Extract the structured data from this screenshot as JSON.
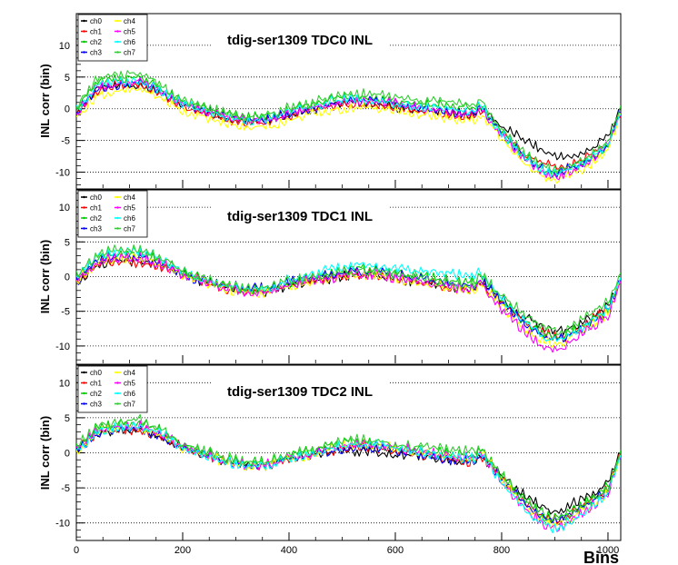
{
  "figure": {
    "x_axis_label": "Bins",
    "y_axis_label": "INL corr (bin)",
    "x_ticks": [
      "0",
      "200",
      "400",
      "600",
      "800",
      "1000"
    ],
    "y_ticks": [
      "10",
      "5",
      "0",
      "-5",
      "-10"
    ]
  },
  "legend": {
    "entries": [
      {
        "label": "ch0",
        "color": "#000000"
      },
      {
        "label": "ch1",
        "color": "#ff0000"
      },
      {
        "label": "ch2",
        "color": "#00cc00"
      },
      {
        "label": "ch3",
        "color": "#0000ff"
      },
      {
        "label": "ch4",
        "color": "#ffff00"
      },
      {
        "label": "ch5",
        "color": "#ff00ff"
      },
      {
        "label": "ch6",
        "color": "#00ffff"
      },
      {
        "label": "ch7",
        "color": "#33cc33"
      }
    ]
  },
  "chart_data": [
    {
      "type": "line",
      "title": "tdig-ser1309 TDC0 INL",
      "xlabel": "Bins",
      "ylabel": "INL corr (bin)",
      "xlim": [
        0,
        1024
      ],
      "ylim": [
        -12.5,
        15
      ],
      "grid": "horizontal-dotted",
      "legend_placement": "top-left",
      "x": [
        0,
        40,
        80,
        120,
        160,
        200,
        240,
        280,
        320,
        360,
        400,
        440,
        480,
        520,
        560,
        600,
        640,
        680,
        720,
        750,
        760,
        800,
        840,
        880,
        900,
        920,
        960,
        1000,
        1024
      ],
      "series": [
        {
          "name": "ch0",
          "values": [
            -1,
            3,
            3.5,
            3.5,
            2,
            0.5,
            -0.5,
            -1.5,
            -2,
            -2,
            -1,
            -0.5,
            0.5,
            1,
            0.5,
            0,
            -0.5,
            -0.5,
            -1,
            -1,
            0,
            -3,
            -5,
            -7,
            -7.5,
            -8,
            -7,
            -4.5,
            -0.5
          ]
        },
        {
          "name": "ch1",
          "values": [
            -1,
            2.5,
            3.5,
            3.5,
            2,
            0,
            -1,
            -2,
            -2.5,
            -2.5,
            -1.5,
            -0.5,
            0,
            0.5,
            0.5,
            0,
            -0.5,
            -1,
            -1.5,
            -1.5,
            -0.5,
            -4,
            -7,
            -9,
            -9.5,
            -9.5,
            -8,
            -5.5,
            -1
          ]
        },
        {
          "name": "ch2",
          "values": [
            0,
            4,
            4.5,
            5,
            3,
            1,
            0,
            -1,
            -1.5,
            -1.5,
            -0.5,
            0.5,
            1.5,
            2,
            1.5,
            1,
            0.5,
            0.5,
            0,
            0,
            0.5,
            -4,
            -7.5,
            -10,
            -10.5,
            -10,
            -8.5,
            -6,
            -0.5
          ]
        },
        {
          "name": "ch3",
          "values": [
            -1,
            3,
            3.5,
            4,
            2.5,
            0.5,
            -0.5,
            -1.5,
            -2,
            -2,
            -1,
            -0.5,
            0.5,
            1,
            1,
            0.5,
            0,
            -0.5,
            -1,
            -1,
            0,
            -4,
            -7.5,
            -10,
            -10.5,
            -10,
            -8.5,
            -6,
            -0.5
          ]
        },
        {
          "name": "ch4",
          "values": [
            -1.5,
            2,
            2.5,
            3,
            1.5,
            -0.5,
            -1.5,
            -2.5,
            -3,
            -3,
            -2,
            -1,
            -0.5,
            0,
            0,
            -0.5,
            -1,
            -1.5,
            -2,
            -2,
            -1,
            -5,
            -8.5,
            -11,
            -11.5,
            -11,
            -9.5,
            -6.5,
            -1
          ]
        },
        {
          "name": "ch5",
          "values": [
            -1,
            3,
            3.5,
            4,
            2.5,
            0.5,
            -0.5,
            -1.5,
            -2,
            -2,
            -1,
            0,
            0.5,
            1,
            1,
            0.5,
            0,
            -0.5,
            -1,
            -1,
            0,
            -4.5,
            -8,
            -10.5,
            -11,
            -10.5,
            -9,
            -6,
            -1
          ]
        },
        {
          "name": "ch6",
          "values": [
            -0.5,
            3.5,
            4,
            4,
            2.5,
            0.5,
            -0.5,
            -1.5,
            -2,
            -2,
            -0.5,
            0,
            1,
            1.5,
            1,
            0.5,
            0,
            0,
            -0.5,
            -0.5,
            0.5,
            -4,
            -7.5,
            -10,
            -10.5,
            -10,
            -8.5,
            -6,
            -0.5
          ]
        },
        {
          "name": "ch7",
          "values": [
            0,
            4.5,
            5,
            5.5,
            3.5,
            1,
            0,
            -1,
            -1.5,
            -1.5,
            0,
            0.5,
            1.5,
            2,
            2,
            1.5,
            1,
            1,
            0.5,
            0.5,
            1,
            -3.5,
            -7,
            -9.5,
            -10,
            -9.5,
            -8,
            -5.5,
            0
          ]
        }
      ]
    },
    {
      "type": "line",
      "title": "tdig-ser1309 TDC1 INL",
      "xlabel": "Bins",
      "ylabel": "INL corr (bin)",
      "xlim": [
        0,
        1024
      ],
      "ylim": [
        -12.5,
        12.5
      ],
      "grid": "horizontal-dotted",
      "legend_placement": "top-left",
      "x": [
        0,
        40,
        80,
        120,
        160,
        200,
        240,
        280,
        320,
        360,
        400,
        440,
        480,
        520,
        560,
        600,
        640,
        680,
        720,
        750,
        760,
        800,
        840,
        880,
        900,
        920,
        960,
        1000,
        1024
      ],
      "series": [
        {
          "name": "ch0",
          "values": [
            -1,
            1.5,
            2,
            2,
            1.5,
            0,
            -1,
            -1.5,
            -2,
            -2.5,
            -1.5,
            -1,
            -0.5,
            0,
            0,
            -0.5,
            -1,
            -1.5,
            -2,
            -2,
            -1,
            -3.5,
            -6,
            -7.5,
            -8,
            -8,
            -6.5,
            -4.5,
            -1
          ]
        },
        {
          "name": "ch1",
          "values": [
            -1,
            1.5,
            2,
            1.5,
            1,
            0,
            -1,
            -2,
            -2.5,
            -2.5,
            -1.5,
            -1,
            -0.5,
            0,
            0,
            -0.5,
            -1,
            -1.5,
            -2,
            -2,
            -1,
            -4,
            -6.5,
            -8.5,
            -9,
            -9,
            -7,
            -5,
            -1
          ]
        },
        {
          "name": "ch2",
          "values": [
            -0.5,
            2.5,
            3,
            3,
            2,
            0.5,
            -0.5,
            -1.5,
            -2,
            -2,
            -1,
            -0.5,
            0.5,
            1,
            1,
            0.5,
            0,
            -0.5,
            -1,
            -1,
            0,
            -3.5,
            -6.5,
            -8.5,
            -9,
            -8.5,
            -7,
            -5,
            -0.5
          ]
        },
        {
          "name": "ch3",
          "values": [
            -1,
            2,
            2.5,
            2.5,
            1.5,
            0,
            -1,
            -1.5,
            -2,
            -2,
            -1,
            -0.5,
            0,
            0.5,
            0.5,
            0,
            -0.5,
            -1,
            -1.5,
            -1.5,
            -0.5,
            -4,
            -7,
            -9,
            -9.5,
            -9,
            -7.5,
            -5,
            -1
          ]
        },
        {
          "name": "ch4",
          "values": [
            -1,
            2,
            2.5,
            2.5,
            1.5,
            0,
            -1,
            -2,
            -2.5,
            -2.5,
            -1.5,
            -1,
            -0.5,
            0,
            0,
            -0.5,
            -1,
            -1.5,
            -2,
            -2,
            -1,
            -4.5,
            -7.5,
            -9.5,
            -10,
            -9.5,
            -7.5,
            -5.5,
            -1
          ]
        },
        {
          "name": "ch5",
          "values": [
            -1,
            2,
            2.5,
            2.5,
            1.5,
            0,
            -1,
            -2,
            -2.5,
            -2.5,
            -1.5,
            -1,
            -0.5,
            0,
            0,
            -0.5,
            -1,
            -1.5,
            -2,
            -2,
            -1,
            -5,
            -8,
            -10.5,
            -11,
            -10.5,
            -8,
            -6,
            -1
          ]
        },
        {
          "name": "ch6",
          "values": [
            -0.5,
            3,
            3.5,
            3.5,
            2.5,
            0.5,
            -0.5,
            -1.5,
            -2,
            -2,
            -0.5,
            0,
            1,
            1.5,
            1.5,
            1,
            0.5,
            0.5,
            0,
            0,
            0.5,
            -3.5,
            -6.5,
            -9,
            -9.5,
            -9,
            -7,
            -5,
            -0.5
          ]
        },
        {
          "name": "ch7",
          "values": [
            0,
            3,
            3.5,
            3.5,
            2.5,
            0.5,
            -0.5,
            -1.5,
            -2,
            -2,
            -1,
            -0.5,
            0,
            0.5,
            0.5,
            0,
            -0.5,
            -1,
            -1.5,
            -1.5,
            0,
            -3,
            -5.5,
            -7.5,
            -8,
            -8,
            -6,
            -4,
            0
          ]
        }
      ]
    },
    {
      "type": "line",
      "title": "tdig-ser1309 TDC2 INL",
      "xlabel": "Bins",
      "ylabel": "INL corr (bin)",
      "xlim": [
        0,
        1024
      ],
      "ylim": [
        -12.5,
        12.5
      ],
      "grid": "horizontal-dotted",
      "legend_placement": "top-left",
      "x": [
        0,
        40,
        80,
        120,
        160,
        200,
        240,
        280,
        320,
        360,
        400,
        440,
        480,
        520,
        560,
        600,
        640,
        680,
        720,
        750,
        760,
        800,
        840,
        880,
        900,
        920,
        960,
        1000,
        1024
      ],
      "series": [
        {
          "name": "ch0",
          "values": [
            0,
            2.5,
            3,
            3,
            2,
            0.5,
            -0.5,
            -1.5,
            -2,
            -2,
            -1,
            -0.5,
            0,
            0,
            0,
            -0.5,
            -0.5,
            -1,
            -1.5,
            -1.5,
            -0.5,
            -3.5,
            -6,
            -8,
            -8.5,
            -8,
            -6.5,
            -4.5,
            0
          ]
        },
        {
          "name": "ch1",
          "values": [
            0,
            2.5,
            3,
            3,
            2,
            0.5,
            -0.5,
            -1.5,
            -2,
            -2,
            -1,
            -0.5,
            0,
            0.5,
            0.5,
            0,
            -0.5,
            -1,
            -1.5,
            -1.5,
            -0.5,
            -4,
            -7,
            -9.5,
            -10,
            -9.5,
            -7.5,
            -5.5,
            -0.5
          ]
        },
        {
          "name": "ch2",
          "values": [
            0.5,
            3.5,
            4,
            4,
            3,
            1,
            0,
            -1,
            -1.5,
            -1.5,
            -0.5,
            0,
            1,
            1.5,
            1,
            0.5,
            0.5,
            0,
            -0.5,
            -0.5,
            0.5,
            -3.5,
            -6.5,
            -9,
            -9.5,
            -9,
            -7,
            -5,
            0
          ]
        },
        {
          "name": "ch3",
          "values": [
            0,
            2.5,
            3,
            3,
            2,
            0.5,
            -0.5,
            -1.5,
            -2,
            -2,
            -1,
            -0.5,
            0,
            0.5,
            0.5,
            0,
            -0.5,
            -1,
            -1.5,
            -1.5,
            -0.5,
            -4,
            -7,
            -9.5,
            -10,
            -9.5,
            -7.5,
            -5.5,
            -0.5
          ]
        },
        {
          "name": "ch4",
          "values": [
            0,
            3,
            3.5,
            3.5,
            2.5,
            0.5,
            -0.5,
            -1.5,
            -2,
            -2,
            -1,
            -0.5,
            0.5,
            1,
            1,
            0.5,
            0,
            -0.5,
            -1,
            -1,
            0,
            -4,
            -7.5,
            -10,
            -10.5,
            -10,
            -8,
            -6,
            -0.5
          ]
        },
        {
          "name": "ch5",
          "values": [
            0,
            3,
            3.5,
            3.5,
            2.5,
            0.5,
            -0.5,
            -1.5,
            -2,
            -2,
            -1,
            -0.5,
            0.5,
            1,
            1,
            0.5,
            0,
            -0.5,
            -1,
            -1,
            0,
            -4.5,
            -8,
            -10.5,
            -11,
            -10.5,
            -8.5,
            -6,
            -0.5
          ]
        },
        {
          "name": "ch6",
          "values": [
            0,
            3,
            3.5,
            3.5,
            2.5,
            0.5,
            -0.5,
            -1.5,
            -2,
            -2,
            -1,
            -0.5,
            0.5,
            1,
            1,
            0.5,
            0,
            -0.5,
            -1,
            -1,
            0,
            -4.5,
            -8,
            -10.5,
            -11,
            -10.5,
            -8.5,
            -6,
            -0.5
          ]
        },
        {
          "name": "ch7",
          "values": [
            0.5,
            3.5,
            4,
            4.5,
            3,
            1,
            0,
            -1,
            -1.5,
            -1.5,
            -0.5,
            0,
            1,
            1.5,
            1.5,
            1,
            0.5,
            0.5,
            0,
            0,
            0.5,
            -3.5,
            -7,
            -9.5,
            -10,
            -9.5,
            -7.5,
            -5.5,
            0
          ]
        }
      ]
    }
  ]
}
